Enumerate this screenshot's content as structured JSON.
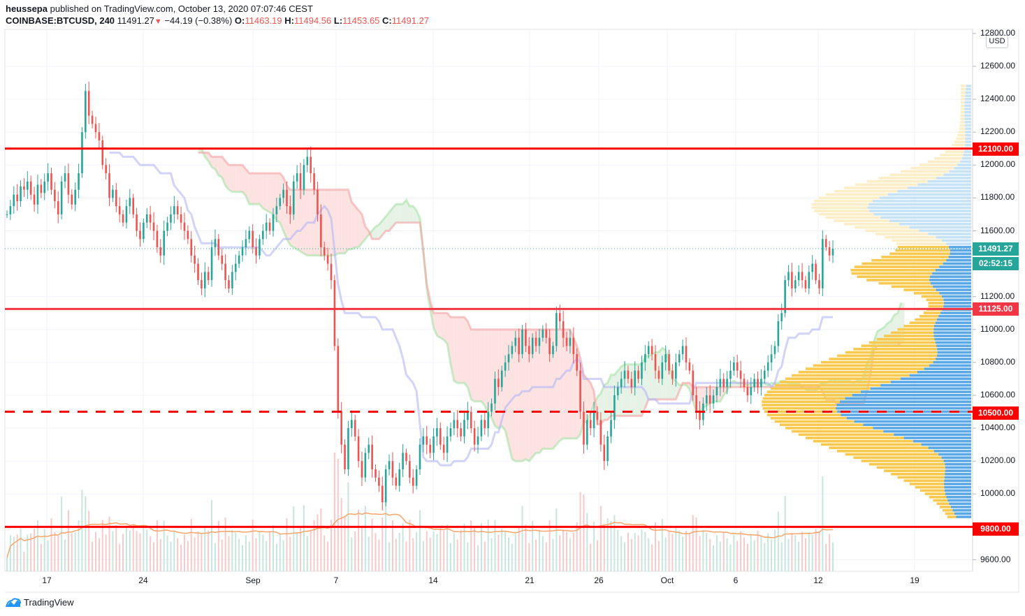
{
  "header": {
    "publisher": "heussepa",
    "published_text": "published on TradingView.com, October 13, 2020 07:07:46 CEST",
    "symbol": "COINBASE:BTCUSD, 240",
    "last": "11491.27",
    "change": "−44.19 (−0.38%)",
    "o_label": "O:",
    "o": "11463.19",
    "h_label": "H:",
    "h": "11494.56",
    "l_label": "L:",
    "l": "11453.65",
    "c_label": "C:",
    "c": "11491.27"
  },
  "price_axis": {
    "currency": "USD",
    "ticks": [
      "12800.00",
      "12600.00",
      "12400.00",
      "12200.00",
      "12000.00",
      "11800.00",
      "11600.00",
      "11200.00",
      "11000.00",
      "10800.00",
      "10600.00",
      "10400.00",
      "10200.00",
      "10000.00",
      "9600.00"
    ],
    "current_price_tag": "11491.27",
    "countdown_tag": "02:52:15",
    "level_tags": [
      "12100.00",
      "11125.00",
      "10500.00",
      "9800.00"
    ]
  },
  "time_axis": {
    "ticks": [
      "17",
      "24",
      "Sep",
      "7",
      "14",
      "21",
      "26",
      "Oct",
      "6",
      "12",
      "19"
    ]
  },
  "footer": {
    "brand": "TradingView"
  },
  "colors": {
    "up": "#26a69a",
    "down": "#ef5350",
    "level": "#ff0000",
    "kijun": "#b2b5f8",
    "cloud_up": "#e6f2e6",
    "cloud_down": "#fde2e2",
    "vp_up": "#f9c94e",
    "vp_down": "#5ba8e6",
    "last_price": "#26a69a"
  },
  "chart_data": {
    "type": "candlestick",
    "title": "COINBASE:BTCUSD, 240",
    "timeframe": "4h",
    "xlabel": "",
    "ylabel": "USD",
    "ylim": [
      9550,
      12850
    ],
    "x_ticks": [
      "17",
      "24",
      "Sep",
      "7",
      "14",
      "21",
      "26",
      "Oct",
      "6",
      "12",
      "19"
    ],
    "y_ticks": [
      9600,
      10000,
      10200,
      10400,
      10600,
      10800,
      11000,
      11200,
      11600,
      11800,
      12000,
      12200,
      12400,
      12600,
      12800
    ],
    "grid": true,
    "horizontal_levels": [
      {
        "price": 12100,
        "style": "solid",
        "color": "#ff0000"
      },
      {
        "price": 11125,
        "style": "solid",
        "color": "#f23645"
      },
      {
        "price": 10500,
        "style": "dashed",
        "color": "#ff0000"
      },
      {
        "price": 9800,
        "style": "solid",
        "color": "#ff0000"
      }
    ],
    "last_price": 11491.27,
    "ohlc_last": {
      "open": 11463.19,
      "high": 11494.56,
      "low": 11453.65,
      "close": 11491.27
    },
    "closes_approx": [
      11700,
      11750,
      11820,
      11780,
      11870,
      11850,
      11900,
      11820,
      11760,
      11880,
      11830,
      11900,
      11950,
      11850,
      11780,
      11700,
      11900,
      11950,
      11820,
      11760,
      11850,
      11950,
      12200,
      12450,
      12300,
      12250,
      12200,
      12150,
      12000,
      11950,
      11800,
      11850,
      11750,
      11700,
      11650,
      11750,
      11800,
      11700,
      11600,
      11550,
      11650,
      11700,
      11650,
      11600,
      11500,
      11450,
      11600,
      11650,
      11700,
      11750,
      11700,
      11650,
      11600,
      11550,
      11450,
      11400,
      11300,
      11250,
      11350,
      11300,
      11500,
      11550,
      11450,
      11400,
      11300,
      11250,
      11350,
      11400,
      11450,
      11500,
      11550,
      11600,
      11500,
      11450,
      11550,
      11600,
      11650,
      11600,
      11700,
      11750,
      11800,
      11850,
      11750,
      11700,
      11900,
      11950,
      11850,
      12000,
      12050,
      11950,
      11850,
      11700,
      11500,
      11450,
      11400,
      11300,
      10900,
      10500,
      10300,
      10150,
      10400,
      10450,
      10350,
      10200,
      10100,
      10250,
      10300,
      10150,
      10100,
      10050,
      9950,
      10150,
      10200,
      10100,
      10050,
      10150,
      10250,
      10200,
      10100,
      10050,
      10150,
      10300,
      10350,
      10300,
      10250,
      10350,
      10400,
      10300,
      10250,
      10350,
      10400,
      10450,
      10400,
      10350,
      10450,
      10500,
      10400,
      10300,
      10350,
      10450,
      10400,
      10500,
      10550,
      10700,
      10650,
      10750,
      10800,
      10850,
      10900,
      10950,
      10850,
      11000,
      10900,
      10850,
      10950,
      10900,
      10950,
      11000,
      10950,
      10850,
      10900,
      11100,
      11050,
      10950,
      10900,
      10950,
      10850,
      10750,
      10500,
      10300,
      10450,
      10400,
      10500,
      10450,
      10300,
      10200,
      10350,
      10450,
      10600,
      10650,
      10700,
      10750,
      10700,
      10650,
      10750,
      10700,
      10800,
      10850,
      10900,
      10850,
      10750,
      10700,
      10800,
      10850,
      10750,
      10700,
      10800,
      10850,
      10900,
      10800,
      10750,
      10600,
      10500,
      10450,
      10550,
      10600,
      10550,
      10600,
      10650,
      10700,
      10650,
      10700,
      10750,
      10800,
      10750,
      10700,
      10650,
      10600,
      10650,
      10700,
      10650,
      10700,
      10750,
      10800,
      10850,
      10900,
      11050,
      11100,
      11300,
      11350,
      11250,
      11300,
      11350,
      11300,
      11250,
      11350,
      11400,
      11300,
      11250,
      11550,
      11500,
      11450,
      11491
    ]
  }
}
